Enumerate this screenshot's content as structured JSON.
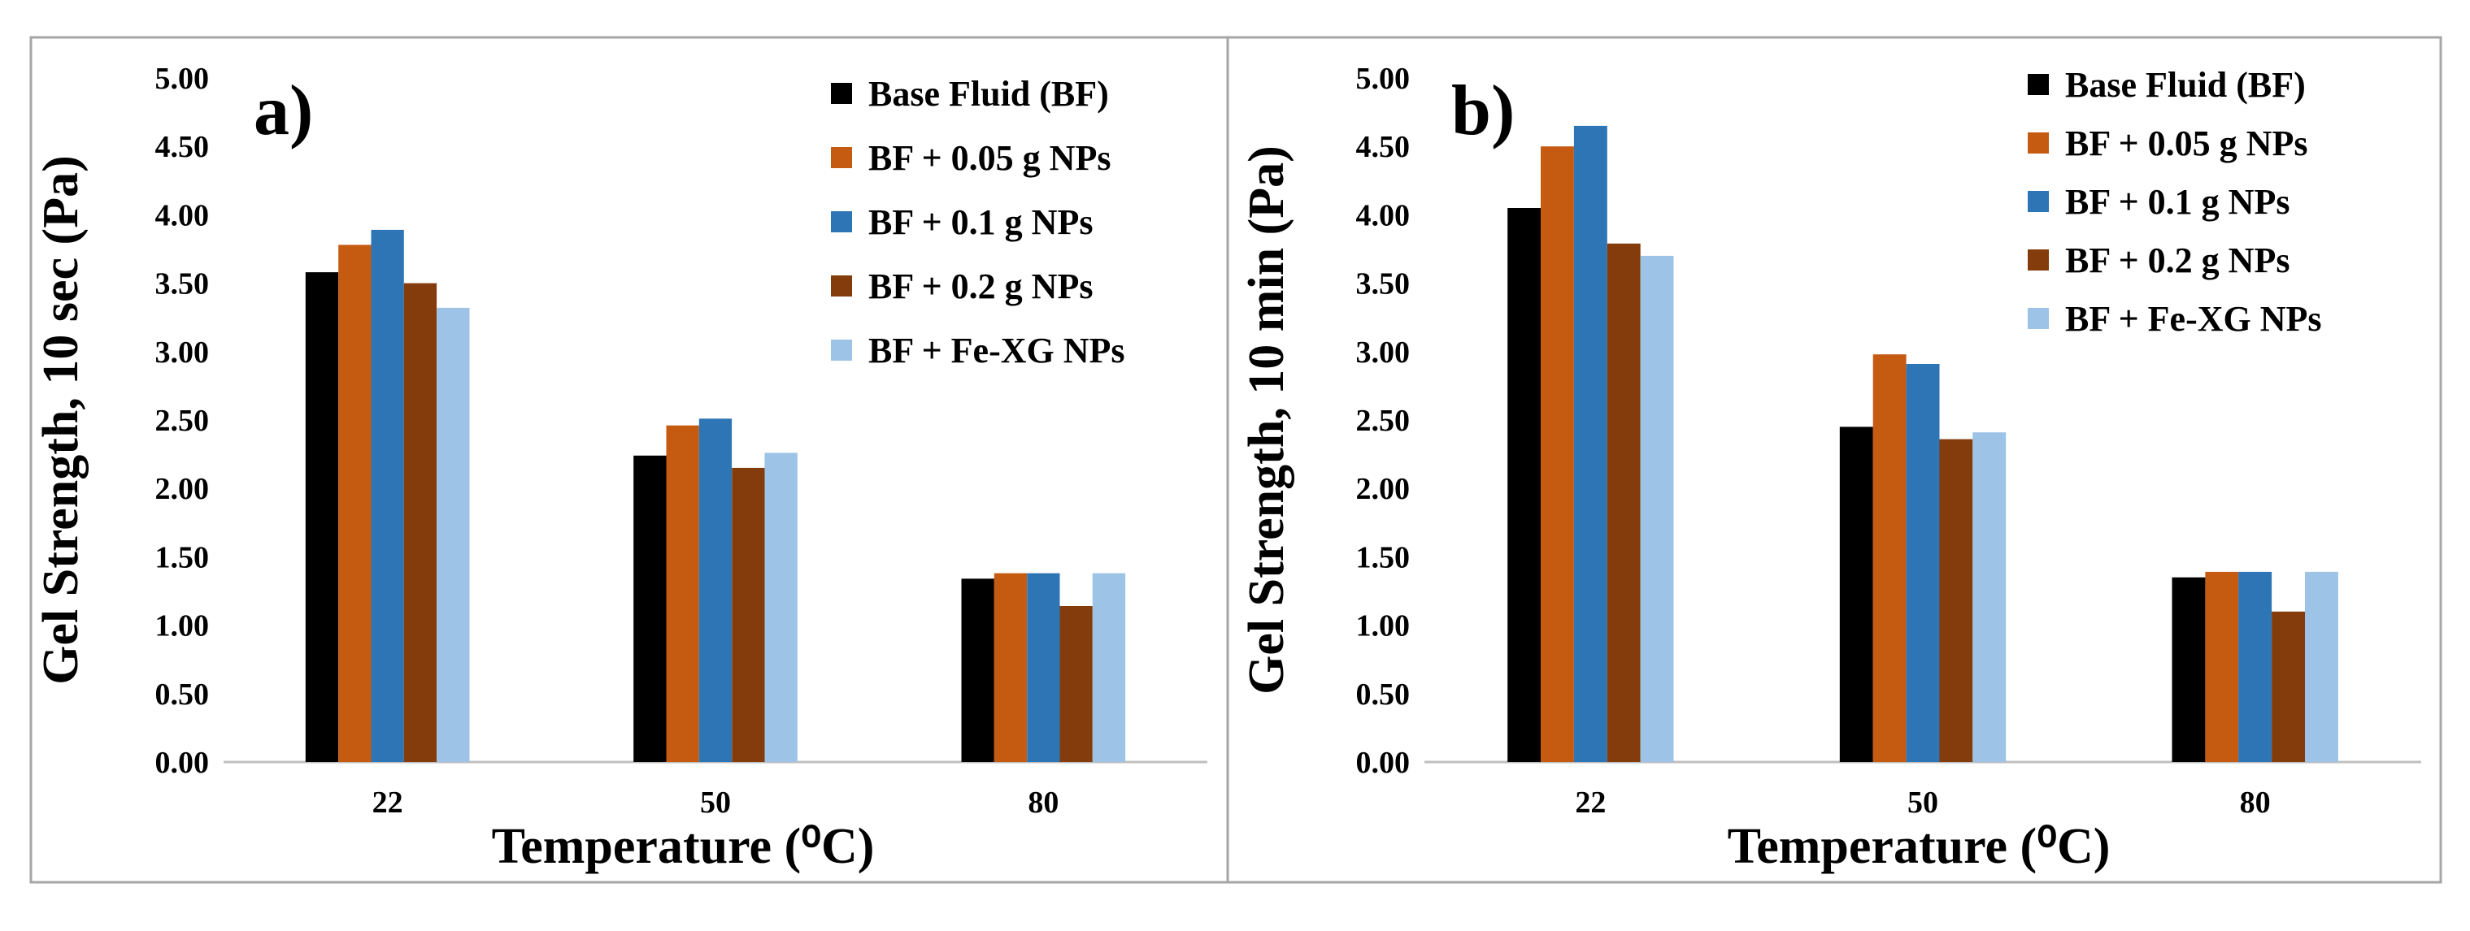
{
  "chart_data": [
    {
      "type": "bar",
      "panel_label": "a)",
      "title": "",
      "xlabel": "Temperature (⁰C)",
      "ylabel": "Gel Strength, 10 sec (Pa)",
      "ylim": [
        0,
        5
      ],
      "yticks": [
        "0.00",
        "0.50",
        "1.00",
        "1.50",
        "2.00",
        "2.50",
        "3.00",
        "3.50",
        "4.00",
        "4.50",
        "5.00"
      ],
      "categories": [
        "22",
        "50",
        "80"
      ],
      "legend_position": "top-right",
      "series": [
        {
          "name": "Base Fluid (BF)",
          "color": "#000000",
          "values": [
            3.58,
            2.24,
            1.34
          ]
        },
        {
          "name": "BF + 0.05 g NPs",
          "color": "#C55A11",
          "values": [
            3.78,
            2.46,
            1.38
          ]
        },
        {
          "name": "BF + 0.1 g NPs",
          "color": "#2E75B6",
          "values": [
            3.89,
            2.51,
            1.38
          ]
        },
        {
          "name": "BF + 0.2 g NPs",
          "color": "#843C0C",
          "values": [
            3.5,
            2.15,
            1.14
          ]
        },
        {
          "name": "BF + Fe-XG NPs",
          "color": "#9DC3E6",
          "values": [
            3.32,
            2.26,
            1.38
          ]
        }
      ]
    },
    {
      "type": "bar",
      "panel_label": "b)",
      "title": "",
      "xlabel": "Temperature (⁰C)",
      "ylabel": "Gel Strength, 10 min (Pa)",
      "ylim": [
        0,
        5
      ],
      "yticks": [
        "0.00",
        "0.50",
        "1.00",
        "1.50",
        "2.00",
        "2.50",
        "3.00",
        "3.50",
        "4.00",
        "4.50",
        "5.00"
      ],
      "categories": [
        "22",
        "50",
        "80"
      ],
      "legend_position": "top-right",
      "series": [
        {
          "name": "Base Fluid (BF)",
          "color": "#000000",
          "values": [
            4.05,
            2.45,
            1.35
          ]
        },
        {
          "name": "BF + 0.05 g NPs",
          "color": "#C55A11",
          "values": [
            4.5,
            2.98,
            1.39
          ]
        },
        {
          "name": "BF + 0.1 g NPs",
          "color": "#2E75B6",
          "values": [
            4.65,
            2.91,
            1.39
          ]
        },
        {
          "name": "BF + 0.2 g NPs",
          "color": "#843C0C",
          "values": [
            3.79,
            2.36,
            1.1
          ]
        },
        {
          "name": "BF + Fe-XG NPs",
          "color": "#9DC3E6",
          "values": [
            3.7,
            2.41,
            1.39
          ]
        }
      ]
    }
  ]
}
